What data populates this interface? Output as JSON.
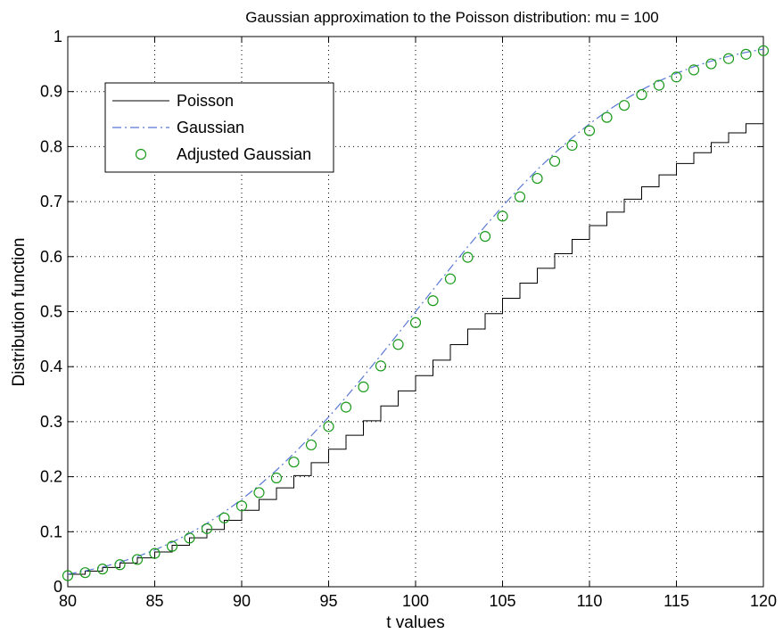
{
  "chart_data": {
    "type": "line",
    "title": "Gaussian approximation to the Poisson distribution:  mu = 100",
    "xlabel": "t values",
    "ylabel": "Distribution function",
    "xlim": [
      80,
      120
    ],
    "ylim": [
      0,
      1
    ],
    "xticks": [
      80,
      85,
      90,
      95,
      100,
      105,
      110,
      115,
      120
    ],
    "yticks": [
      0,
      0.1,
      0.2,
      0.3,
      0.4,
      0.5,
      0.6,
      0.7,
      0.8,
      0.9,
      1
    ],
    "xtick_labels": [
      "80",
      "85",
      "90",
      "95",
      "100",
      "105",
      "110",
      "115",
      "120"
    ],
    "ytick_labels": [
      "0",
      "0.1",
      "0.2",
      "0.3",
      "0.4",
      "0.5",
      "0.6",
      "0.7",
      "0.8",
      "0.9",
      "1"
    ],
    "grid": true,
    "legend_position": "top-left",
    "series": [
      {
        "name": "Poisson",
        "style": "step",
        "color": "#000000",
        "x": [
          80,
          81,
          82,
          83,
          84,
          85,
          86,
          87,
          88,
          89,
          90,
          91,
          92,
          93,
          94,
          95,
          96,
          97,
          98,
          99,
          100,
          101,
          102,
          103,
          104,
          105,
          106,
          107,
          108,
          109,
          110,
          111,
          112,
          113,
          114,
          115,
          116,
          117,
          118,
          119,
          120
        ],
        "y": [
          0.0226,
          0.0283,
          0.0351,
          0.0431,
          0.0525,
          0.0632,
          0.0753,
          0.0889,
          0.1041,
          0.1208,
          0.139,
          0.1587,
          0.1797,
          0.202,
          0.2255,
          0.25,
          0.2754,
          0.3017,
          0.3286,
          0.356,
          0.3838,
          0.4119,
          0.4401,
          0.4683,
          0.4964,
          0.5243,
          0.5518,
          0.5789,
          0.6054,
          0.6313,
          0.6565,
          0.6809,
          0.7044,
          0.727,
          0.7486,
          0.7692,
          0.7888,
          0.8074,
          0.825,
          0.8415,
          0.857
        ]
      },
      {
        "name": "Gaussian",
        "style": "dash-dot",
        "color": "#5b78d6",
        "x": [
          80,
          81,
          82,
          83,
          84,
          85,
          86,
          87,
          88,
          89,
          90,
          91,
          92,
          93,
          94,
          95,
          96,
          97,
          98,
          99,
          100,
          101,
          102,
          103,
          104,
          105,
          106,
          107,
          108,
          109,
          110,
          111,
          112,
          113,
          114,
          115,
          116,
          117,
          118,
          119,
          120
        ],
        "y": [
          0.0228,
          0.0287,
          0.0359,
          0.0446,
          0.0548,
          0.0668,
          0.0808,
          0.0968,
          0.1151,
          0.1357,
          0.1587,
          0.1841,
          0.2119,
          0.242,
          0.2743,
          0.3085,
          0.3446,
          0.3821,
          0.4207,
          0.4602,
          0.5,
          0.5398,
          0.5793,
          0.6179,
          0.6554,
          0.6915,
          0.7257,
          0.758,
          0.7881,
          0.8159,
          0.8413,
          0.8643,
          0.8849,
          0.9032,
          0.9192,
          0.9332,
          0.9452,
          0.9554,
          0.9641,
          0.9713,
          0.9772
        ]
      },
      {
        "name": "Adjusted Gaussian",
        "style": "marker-circle",
        "color": "#1a9a1a",
        "x": [
          80,
          81,
          82,
          83,
          84,
          85,
          86,
          87,
          88,
          89,
          90,
          91,
          92,
          93,
          94,
          95,
          96,
          97,
          98,
          99,
          100,
          101,
          102,
          103,
          104,
          105,
          106,
          107,
          108,
          109,
          110,
          111,
          112,
          113,
          114,
          115,
          116,
          117,
          118,
          119,
          120
        ],
        "y": [
          0.0202,
          0.0256,
          0.0322,
          0.0401,
          0.0495,
          0.0606,
          0.0735,
          0.0885,
          0.1056,
          0.1251,
          0.1469,
          0.1711,
          0.1977,
          0.2266,
          0.2578,
          0.2912,
          0.3264,
          0.3632,
          0.4013,
          0.4404,
          0.4801,
          0.5199,
          0.5596,
          0.5987,
          0.6368,
          0.6736,
          0.7088,
          0.7422,
          0.7734,
          0.8023,
          0.8289,
          0.8531,
          0.8749,
          0.8944,
          0.9115,
          0.9265,
          0.9394,
          0.9505,
          0.9599,
          0.9678,
          0.9744
        ]
      }
    ]
  }
}
